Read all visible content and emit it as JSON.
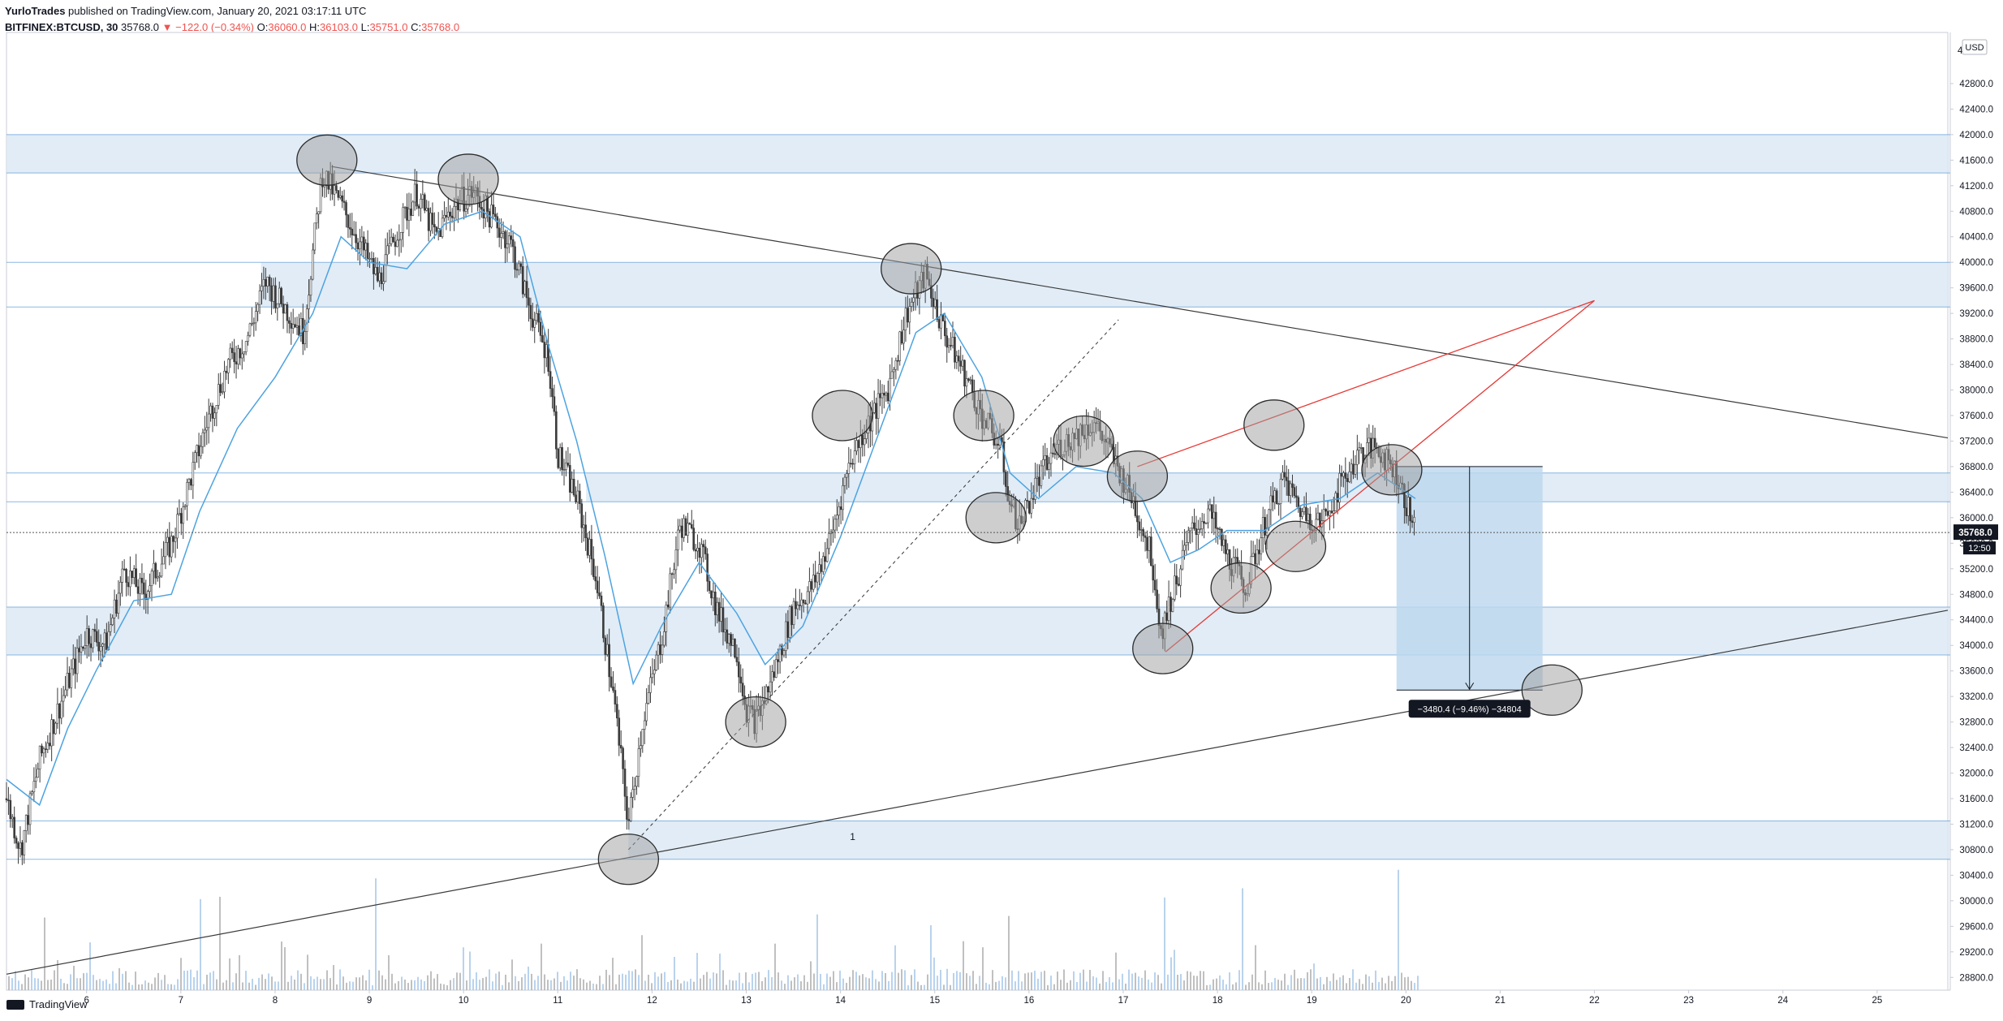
{
  "header": {
    "author": "YurloTrades",
    "published": "published on TradingView.com, January 20, 2021 03:17:11 UTC",
    "symbol": "BITFINEX:BTCUSD, 30",
    "last": "35768.0",
    "change_arrow": "▼",
    "change": "−122.0 (−0.34%)",
    "o_label": "O:",
    "o": "36060.0",
    "h_label": "H:",
    "h": "36103.0",
    "l_label": "L:",
    "l": "35751.0",
    "c_label": "C:",
    "c": "35768.0"
  },
  "footer": {
    "brand": "TradingView"
  },
  "colors": {
    "zone": "#dce9f5",
    "zone_line": "#5b9bd5",
    "ma": "#4da3e0",
    "candle": "#3b3b3b",
    "trend": "#3a3a3a",
    "wedge": "#e53935",
    "volume": "#a8c8e8",
    "measure": "#bcd7ee",
    "price_label": "#131722"
  },
  "chart_data": {
    "type": "candlestick",
    "title": "",
    "currency": "USD",
    "y_ticks": [
      28800,
      29200,
      29600,
      30000,
      30400,
      30800,
      31200,
      31600,
      32000,
      32400,
      32800,
      33200,
      33600,
      34000,
      34400,
      34800,
      35200,
      35600,
      36000,
      36400,
      36800,
      37200,
      37600,
      38000,
      38400,
      38800,
      39200,
      39600,
      40000,
      40400,
      40800,
      41200,
      41600,
      42000,
      42400,
      42800
    ],
    "ylim": [
      28600,
      43600
    ],
    "x_ticks": [
      "6",
      "7",
      "8",
      "9",
      "10",
      "11",
      "12",
      "13",
      "14",
      "15",
      "16",
      "17",
      "18",
      "19",
      "20",
      "21",
      "22",
      "23",
      "24",
      "25"
    ],
    "xlim": [
      5.15,
      25.75
    ],
    "price_path": [
      [
        5.15,
        31600
      ],
      [
        5.3,
        30800
      ],
      [
        5.5,
        32200
      ],
      [
        5.7,
        33000
      ],
      [
        6.0,
        34200
      ],
      [
        6.2,
        34000
      ],
      [
        6.4,
        35200
      ],
      [
        6.6,
        34800
      ],
      [
        6.9,
        35600
      ],
      [
        7.1,
        36600
      ],
      [
        7.3,
        37600
      ],
      [
        7.5,
        38400
      ],
      [
        7.7,
        38800
      ],
      [
        7.9,
        39700
      ],
      [
        8.1,
        39300
      ],
      [
        8.3,
        38900
      ],
      [
        8.5,
        41400
      ],
      [
        8.7,
        40900
      ],
      [
        8.9,
        40300
      ],
      [
        9.1,
        39700
      ],
      [
        9.3,
        40500
      ],
      [
        9.5,
        41100
      ],
      [
        9.7,
        40400
      ],
      [
        9.9,
        40900
      ],
      [
        10.1,
        41100
      ],
      [
        10.3,
        40700
      ],
      [
        10.5,
        40300
      ],
      [
        10.7,
        39300
      ],
      [
        10.9,
        38500
      ],
      [
        11.0,
        37000
      ],
      [
        11.2,
        36300
      ],
      [
        11.4,
        35100
      ],
      [
        11.6,
        33100
      ],
      [
        11.75,
        31200
      ],
      [
        11.9,
        32800
      ],
      [
        12.1,
        34100
      ],
      [
        12.3,
        35900
      ],
      [
        12.5,
        35600
      ],
      [
        12.7,
        34500
      ],
      [
        12.9,
        33900
      ],
      [
        13.0,
        33000
      ],
      [
        13.1,
        32800
      ],
      [
        13.3,
        33600
      ],
      [
        13.5,
        34600
      ],
      [
        13.7,
        34900
      ],
      [
        13.9,
        35700
      ],
      [
        14.1,
        36900
      ],
      [
        14.3,
        37500
      ],
      [
        14.5,
        38000
      ],
      [
        14.7,
        39200
      ],
      [
        14.9,
        39800
      ],
      [
        15.1,
        38900
      ],
      [
        15.3,
        38300
      ],
      [
        15.5,
        37600
      ],
      [
        15.7,
        37100
      ],
      [
        15.8,
        36200
      ],
      [
        15.9,
        35900
      ],
      [
        16.1,
        36600
      ],
      [
        16.3,
        37100
      ],
      [
        16.5,
        37300
      ],
      [
        16.7,
        37500
      ],
      [
        16.9,
        36900
      ],
      [
        17.1,
        36300
      ],
      [
        17.3,
        35400
      ],
      [
        17.4,
        34200
      ],
      [
        17.5,
        34700
      ],
      [
        17.7,
        35700
      ],
      [
        17.9,
        36100
      ],
      [
        18.1,
        35400
      ],
      [
        18.3,
        34900
      ],
      [
        18.5,
        35900
      ],
      [
        18.7,
        36600
      ],
      [
        18.9,
        36100
      ],
      [
        19.1,
        35900
      ],
      [
        19.3,
        36500
      ],
      [
        19.5,
        37000
      ],
      [
        19.7,
        37100
      ],
      [
        19.9,
        36700
      ],
      [
        20.1,
        35768
      ]
    ],
    "ma_path": [
      [
        5.15,
        31900
      ],
      [
        5.5,
        31500
      ],
      [
        5.8,
        32700
      ],
      [
        6.1,
        33600
      ],
      [
        6.5,
        34700
      ],
      [
        6.9,
        34800
      ],
      [
        7.2,
        36100
      ],
      [
        7.6,
        37400
      ],
      [
        8.0,
        38200
      ],
      [
        8.4,
        39200
      ],
      [
        8.7,
        40400
      ],
      [
        9.0,
        40000
      ],
      [
        9.4,
        39900
      ],
      [
        9.8,
        40600
      ],
      [
        10.2,
        40800
      ],
      [
        10.6,
        40400
      ],
      [
        10.9,
        38700
      ],
      [
        11.2,
        37200
      ],
      [
        11.5,
        35400
      ],
      [
        11.8,
        33400
      ],
      [
        12.1,
        34300
      ],
      [
        12.5,
        35300
      ],
      [
        12.9,
        34500
      ],
      [
        13.2,
        33700
      ],
      [
        13.6,
        34300
      ],
      [
        14.0,
        35700
      ],
      [
        14.4,
        37300
      ],
      [
        14.8,
        38900
      ],
      [
        15.1,
        39200
      ],
      [
        15.5,
        38200
      ],
      [
        15.8,
        36700
      ],
      [
        16.1,
        36300
      ],
      [
        16.5,
        36800
      ],
      [
        16.9,
        36700
      ],
      [
        17.2,
        36300
      ],
      [
        17.5,
        35300
      ],
      [
        17.8,
        35500
      ],
      [
        18.1,
        35800
      ],
      [
        18.5,
        35800
      ],
      [
        18.9,
        36200
      ],
      [
        19.3,
        36300
      ],
      [
        19.7,
        36700
      ],
      [
        20.1,
        36300
      ]
    ],
    "zones": [
      {
        "y1": 41400,
        "y2": 42000,
        "x1": 5.15
      },
      {
        "y1": 39300,
        "y2": 40000,
        "x1": 7.85
      },
      {
        "y1": 36250,
        "y2": 36700,
        "x1": 11.3
      },
      {
        "y1": 33850,
        "y2": 34600,
        "x1": 5.15
      },
      {
        "y1": 30650,
        "y2": 31250,
        "x1": 11.75
      }
    ],
    "trend_lines": [
      {
        "x1": 8.6,
        "y1": 41500,
        "x2": 25.75,
        "y2": 37250
      },
      {
        "x1": 5.15,
        "y1": 28850,
        "x2": 25.75,
        "y2": 34550
      }
    ],
    "dashed_line": {
      "x1": 11.75,
      "y1": 30800,
      "x2": 16.95,
      "y2": 39100
    },
    "wedge_lines": [
      {
        "x1": 17.15,
        "y1": 36800,
        "x2": 22.0,
        "y2": 39400
      },
      {
        "x1": 17.45,
        "y1": 33900,
        "x2": 22.0,
        "y2": 39400
      }
    ],
    "circles": [
      {
        "x": 8.55,
        "y": 41600
      },
      {
        "x": 10.05,
        "y": 41300
      },
      {
        "x": 14.75,
        "y": 39900
      },
      {
        "x": 14.02,
        "y": 37600
      },
      {
        "x": 15.52,
        "y": 37600
      },
      {
        "x": 16.58,
        "y": 37200
      },
      {
        "x": 17.15,
        "y": 36650
      },
      {
        "x": 18.6,
        "y": 37450
      },
      {
        "x": 15.65,
        "y": 36000
      },
      {
        "x": 13.1,
        "y": 32800
      },
      {
        "x": 11.75,
        "y": 30650
      },
      {
        "x": 18.25,
        "y": 34900
      },
      {
        "x": 18.83,
        "y": 35550
      },
      {
        "x": 17.42,
        "y": 33950
      },
      {
        "x": 19.85,
        "y": 36750
      },
      {
        "x": 21.55,
        "y": 33300
      }
    ],
    "measure_box": {
      "x1": 19.9,
      "x2": 21.45,
      "y_top": 36800,
      "y_bottom": 33300,
      "label": "−3480.4 (−9.46%) −34804"
    },
    "text_marker": {
      "x": 14.1,
      "y": 30950,
      "text": "1"
    },
    "last_price": 35768,
    "last_price_label": "35768.0",
    "countdown": "12:50",
    "axis_top_label": "4",
    "volume_seed": 7
  }
}
